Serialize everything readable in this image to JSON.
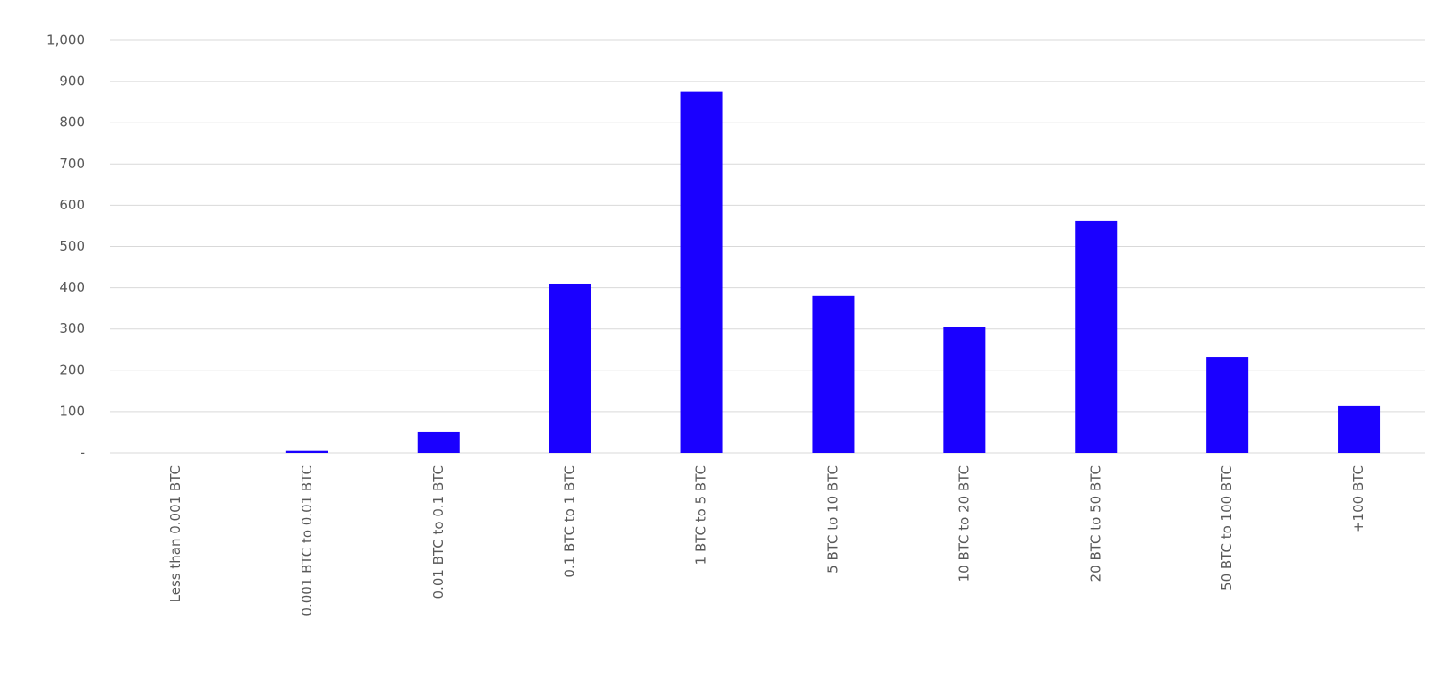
{
  "chart_data": {
    "type": "bar",
    "categories": [
      "Less than 0.001 BTC",
      "0.001 BTC to 0.01 BTC",
      "0.01 BTC to 0.1 BTC",
      "0.1 BTC to 1 BTC",
      "1 BTC to 5 BTC",
      "5 BTC to 10 BTC",
      "10 BTC to 20 BTC",
      "20 BTC to 50 BTC",
      "50 BTC to 100 BTC",
      "+100 BTC"
    ],
    "values": [
      0,
      5,
      50,
      410,
      875,
      380,
      305,
      562,
      232,
      113
    ],
    "color": "#1a00ff",
    "ylim": [
      0,
      1000
    ],
    "yticks": [
      {
        "value": 0,
        "label": "-"
      },
      100,
      200,
      300,
      400,
      500,
      600,
      700,
      800,
      900,
      {
        "value": 1000,
        "label": "1,000"
      }
    ],
    "grid": true
  }
}
